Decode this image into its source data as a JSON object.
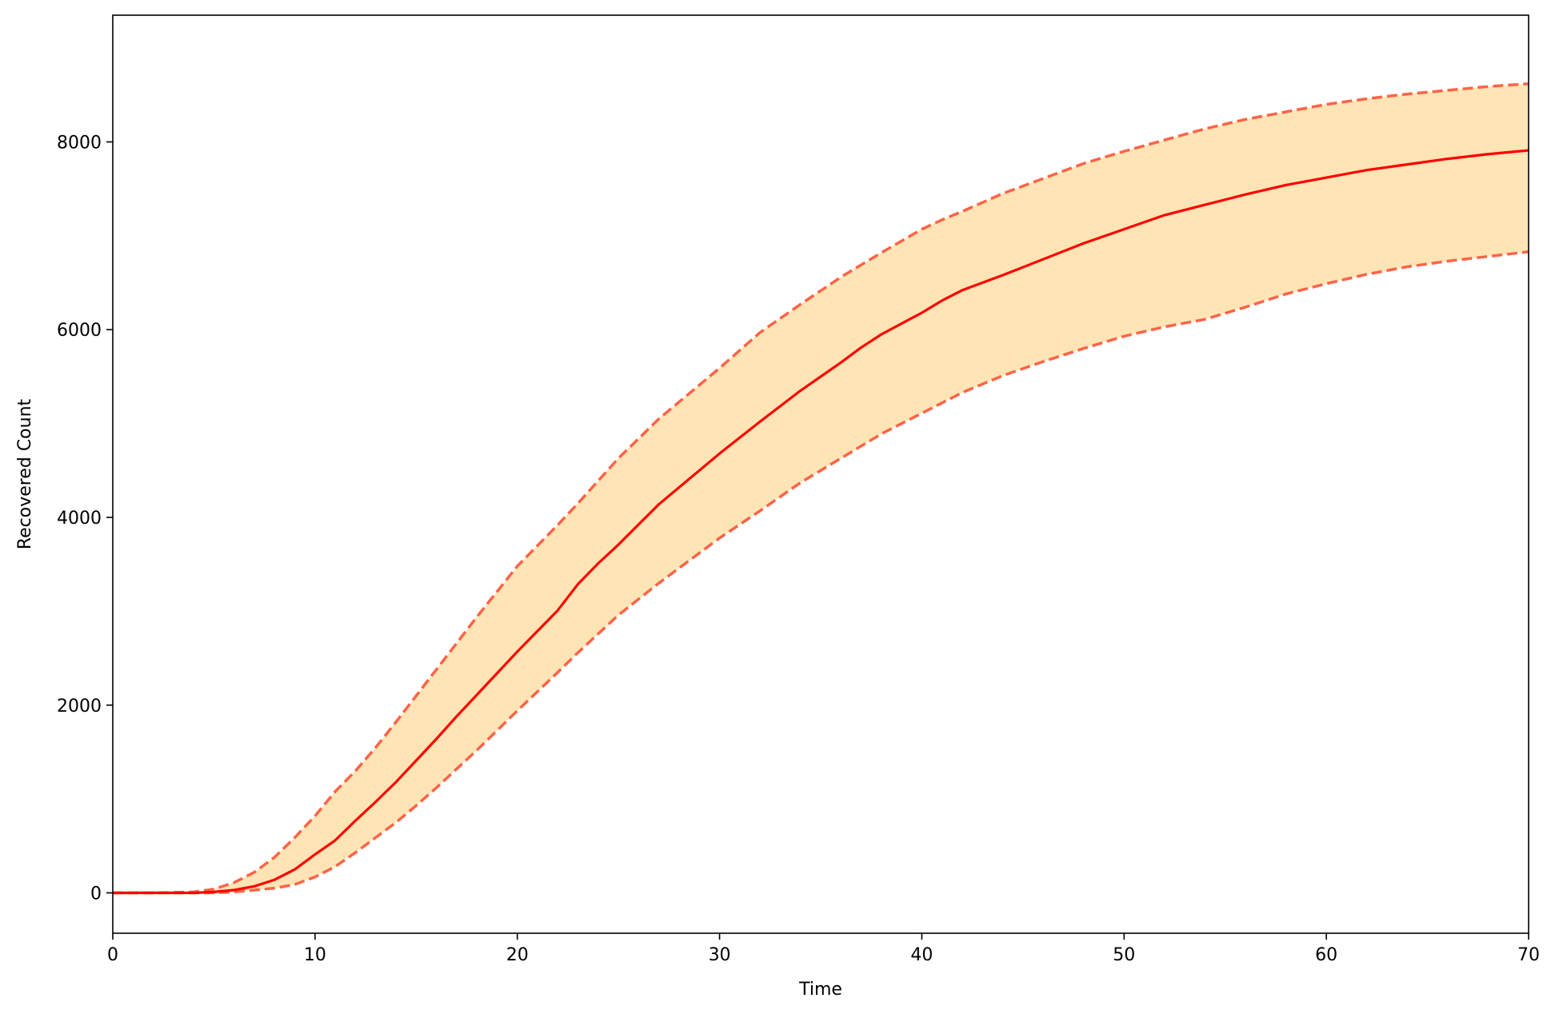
{
  "colors": {
    "mean_line": "#ff0000",
    "bound_line": "#ff6347",
    "band_fill": "#ffe4b5",
    "axis": "#000000"
  },
  "chart_data": {
    "type": "line",
    "title": "",
    "xlabel": "Time",
    "ylabel": "Recovered Count",
    "xlim": [
      0,
      70
    ],
    "ylim": [
      -430,
      9350
    ],
    "x_ticks": [
      0,
      10,
      20,
      30,
      40,
      50,
      60,
      70
    ],
    "y_ticks": [
      0,
      2000,
      4000,
      6000,
      8000
    ],
    "grid": false,
    "legend": "none",
    "x": [
      0,
      2,
      4,
      5,
      6,
      7,
      8,
      9,
      10,
      11,
      12,
      13,
      14,
      15,
      16,
      17,
      18,
      19,
      20,
      22,
      23,
      24,
      25,
      27,
      30,
      32,
      34,
      36,
      37,
      38,
      40,
      41,
      42,
      44,
      46,
      48,
      50,
      52,
      54,
      56,
      58,
      60,
      62,
      64,
      66,
      68,
      70
    ],
    "series": [
      {
        "role": "upper-bound",
        "style": "dashed",
        "values": [
          0,
          0,
          10,
          40,
          110,
          220,
          380,
          590,
          820,
          1080,
          1300,
          1550,
          1820,
          2100,
          2380,
          2660,
          2940,
          3210,
          3480,
          3920,
          4150,
          4390,
          4630,
          5050,
          5590,
          5970,
          6270,
          6560,
          6690,
          6820,
          7070,
          7170,
          7260,
          7450,
          7610,
          7770,
          7900,
          8020,
          8140,
          8240,
          8320,
          8400,
          8460,
          8510,
          8550,
          8590,
          8620
        ]
      },
      {
        "role": "mean",
        "style": "solid",
        "values": [
          0,
          0,
          0,
          10,
          30,
          70,
          140,
          250,
          410,
          560,
          770,
          970,
          1180,
          1410,
          1640,
          1880,
          2110,
          2340,
          2570,
          3010,
          3290,
          3510,
          3710,
          4140,
          4680,
          5020,
          5350,
          5650,
          5810,
          5950,
          6180,
          6310,
          6420,
          6580,
          6750,
          6920,
          7070,
          7220,
          7330,
          7440,
          7540,
          7620,
          7700,
          7760,
          7820,
          7870,
          7910
        ]
      },
      {
        "role": "lower-bound",
        "style": "dashed",
        "values": [
          0,
          0,
          0,
          0,
          10,
          30,
          50,
          90,
          170,
          280,
          430,
          590,
          750,
          930,
          1120,
          1320,
          1520,
          1730,
          1940,
          2350,
          2560,
          2760,
          2960,
          3300,
          3780,
          4070,
          4370,
          4630,
          4760,
          4890,
          5110,
          5220,
          5330,
          5510,
          5660,
          5800,
          5930,
          6030,
          6110,
          6240,
          6380,
          6490,
          6590,
          6670,
          6730,
          6780,
          6830
        ]
      }
    ]
  }
}
